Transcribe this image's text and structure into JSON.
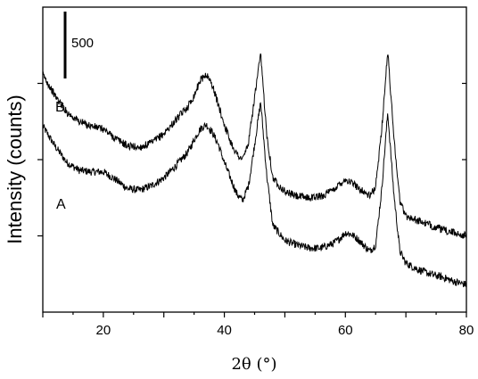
{
  "chart_data": {
    "type": "line",
    "xlabel": "2θ (°)",
    "ylabel": "Intensity (counts)",
    "xlim": [
      10,
      80
    ],
    "x_ticks": [
      20,
      40,
      60,
      80
    ],
    "ylim": [
      0,
      2000
    ],
    "scale_bar": {
      "label": "500",
      "value": 500
    },
    "grid": false,
    "series": [
      {
        "name": "A",
        "x": [
          10,
          12,
          14,
          16,
          18,
          20,
          22,
          24,
          26,
          28,
          30,
          32,
          34,
          35,
          36,
          37,
          38,
          39,
          40,
          41,
          42,
          43,
          44,
          45,
          46,
          47,
          48,
          50,
          52,
          54,
          56,
          58,
          59,
          60,
          61,
          62,
          63,
          64,
          65,
          66,
          67,
          68,
          69,
          70,
          72,
          74,
          76,
          78,
          80
        ],
        "y": [
          1220,
          1090,
          980,
          930,
          920,
          920,
          870,
          810,
          800,
          830,
          880,
          960,
          1050,
          1130,
          1200,
          1230,
          1180,
          1100,
          980,
          880,
          780,
          730,
          830,
          1100,
          1380,
          900,
          570,
          470,
          440,
          420,
          420,
          450,
          480,
          520,
          510,
          480,
          440,
          400,
          440,
          800,
          1310,
          780,
          400,
          320,
          280,
          250,
          230,
          200,
          180
        ]
      },
      {
        "name": "B",
        "x": [
          10,
          12,
          14,
          16,
          18,
          20,
          22,
          24,
          26,
          28,
          30,
          32,
          34,
          35,
          36,
          37,
          38,
          39,
          40,
          41,
          42,
          43,
          44,
          45,
          46,
          47,
          48,
          50,
          52,
          54,
          56,
          58,
          59,
          60,
          61,
          62,
          63,
          64,
          65,
          66,
          67,
          68,
          69,
          70,
          72,
          74,
          76,
          78,
          80
        ],
        "y": [
          1560,
          1420,
          1310,
          1250,
          1220,
          1200,
          1140,
          1090,
          1080,
          1110,
          1170,
          1260,
          1350,
          1420,
          1520,
          1560,
          1490,
          1360,
          1230,
          1120,
          1040,
          1000,
          1110,
          1410,
          1690,
          1170,
          880,
          790,
          760,
          750,
          760,
          800,
          840,
          870,
          850,
          820,
          790,
          760,
          820,
          1200,
          1710,
          1160,
          730,
          630,
          600,
          570,
          540,
          520,
          500
        ]
      }
    ],
    "annotations": [
      "B",
      "A"
    ]
  }
}
